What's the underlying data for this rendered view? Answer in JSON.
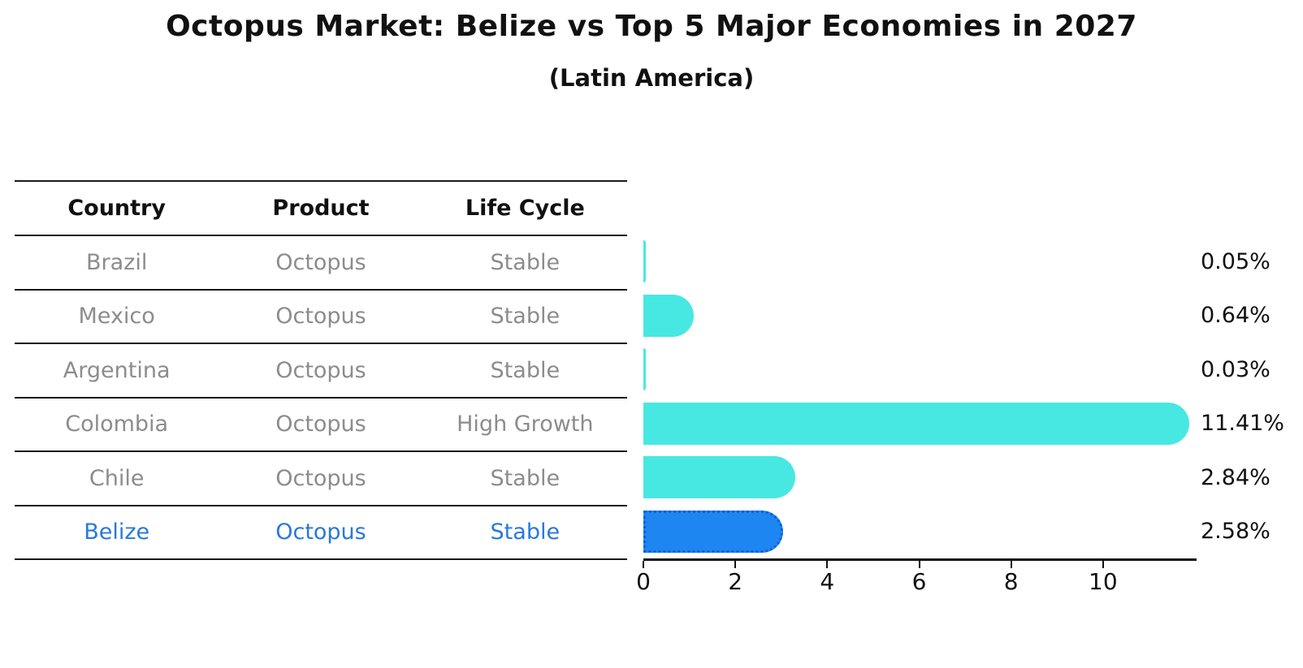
{
  "title": "Octopus Market: Belize vs Top 5 Major Economies in 2027",
  "subtitle": "(Latin America)",
  "table": {
    "columns": [
      "Country",
      "Product",
      "Life Cycle"
    ],
    "rows": [
      {
        "country": "Brazil",
        "product": "Octopus",
        "life_cycle": "Stable",
        "highlight": false
      },
      {
        "country": "Mexico",
        "product": "Octopus",
        "life_cycle": "Stable",
        "highlight": false
      },
      {
        "country": "Argentina",
        "product": "Octopus",
        "life_cycle": "Stable",
        "highlight": false
      },
      {
        "country": "Colombia",
        "product": "Octopus",
        "life_cycle": "High Growth",
        "highlight": false
      },
      {
        "country": "Chile",
        "product": "Octopus",
        "life_cycle": "Stable",
        "highlight": false
      },
      {
        "country": "Belize",
        "product": "Octopus",
        "life_cycle": "Stable",
        "highlight": true
      }
    ]
  },
  "chart_data": {
    "type": "bar",
    "orientation": "horizontal",
    "title": "Octopus Market: Belize vs Top 5 Major Economies in 2027 (Latin America)",
    "categories": [
      "Brazil",
      "Mexico",
      "Argentina",
      "Colombia",
      "Chile",
      "Belize"
    ],
    "values": [
      0.05,
      0.64,
      0.03,
      11.41,
      2.84,
      2.58
    ],
    "value_labels": [
      "0.05%",
      "0.64%",
      "0.03%",
      "11.41%",
      "2.84%",
      "2.58%"
    ],
    "highlight_index": 5,
    "xlim": [
      0,
      12
    ],
    "xticks": [
      0,
      2,
      4,
      6,
      8,
      10
    ],
    "xtick_labels": [
      "0",
      "2",
      "4",
      "6",
      "8",
      "10"
    ],
    "grid": false,
    "legend": false
  },
  "colors": {
    "bar": "#47E8E1",
    "highlight_bar": "#1E86F0",
    "highlight_bar_border": "#0F5FD7",
    "table_text": "#8C8C8C",
    "highlight_text": "#2878DE",
    "heading_text": "#111111",
    "axis": "#111111"
  }
}
